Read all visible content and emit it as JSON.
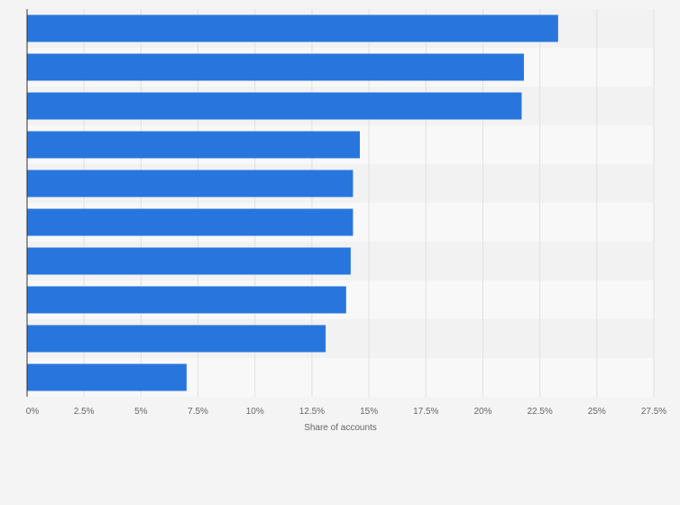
{
  "chart_data": {
    "type": "bar",
    "orientation": "horizontal",
    "values": [
      23.3,
      21.8,
      21.7,
      14.6,
      14.3,
      14.3,
      14.2,
      14.0,
      13.1,
      7.0
    ],
    "xlabel": "Share of accounts",
    "xlim": [
      0,
      27.5
    ],
    "x_ticks": [
      "0%",
      "2.5%",
      "5%",
      "7.5%",
      "10%",
      "12.5%",
      "15%",
      "17.5%",
      "20%",
      "22.5%",
      "25%",
      "27.5%"
    ],
    "bar_color": "#2876dd",
    "grid": true,
    "legend": "none"
  }
}
